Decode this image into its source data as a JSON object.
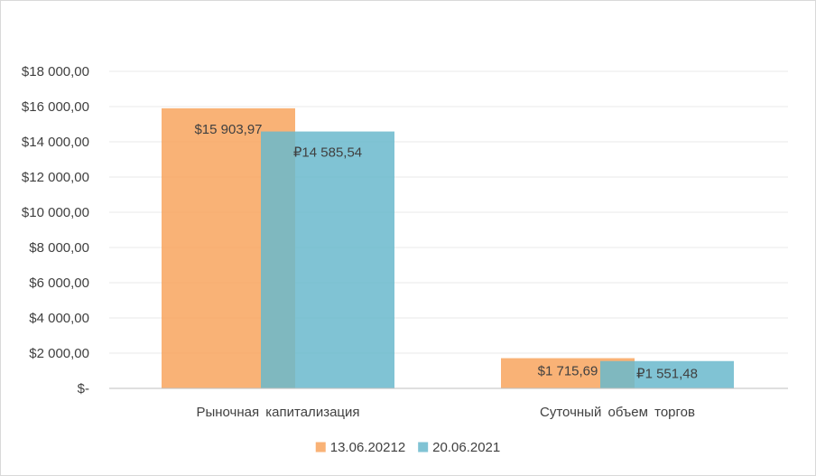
{
  "chart_data": {
    "type": "bar",
    "categories": [
      "Рыночная капитализация",
      "Суточный объем торгов"
    ],
    "series": [
      {
        "name": "13.06.20212",
        "values": [
          15903.97,
          1715.69
        ],
        "labels": [
          "$15 903,97",
          "$1 715,69"
        ],
        "color": "#F8A55E"
      },
      {
        "name": "20.06.2021",
        "values": [
          14585.54,
          1551.48
        ],
        "labels": [
          "₽14 585,54",
          "₽1 551,48"
        ],
        "color": "#6AB8CC"
      }
    ],
    "y_ticks": [
      {
        "value": 0,
        "label": "$-"
      },
      {
        "value": 2000,
        "label": "$2 000,00"
      },
      {
        "value": 4000,
        "label": "$4 000,00"
      },
      {
        "value": 6000,
        "label": "$6 000,00"
      },
      {
        "value": 8000,
        "label": "$8 000,00"
      },
      {
        "value": 10000,
        "label": "$10 000,00"
      },
      {
        "value": 12000,
        "label": "$12 000,00"
      },
      {
        "value": 14000,
        "label": "$14 000,00"
      },
      {
        "value": 16000,
        "label": "$16 000,00"
      },
      {
        "value": 18000,
        "label": "$18 000,00"
      }
    ],
    "ylim": [
      0,
      18000
    ],
    "title": "",
    "xlabel": "",
    "ylabel": "",
    "grid": true,
    "legend_position": "bottom",
    "bar_opacity": 0.85,
    "grid_color": "#e8e8e8",
    "axis_color": "#bfbfbf"
  }
}
